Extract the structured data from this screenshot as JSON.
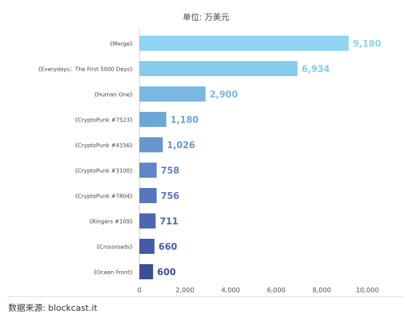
{
  "chart_data": {
    "type": "bar",
    "orientation": "horizontal",
    "subtitle": "单位: 万美元",
    "categories": [
      "《Merge》",
      "《Everydays：The First 5000 Days》",
      "《Human One》",
      "《CryptoPunk #7523》",
      "《CryptoPunk #4156》",
      "《CryptoPunk #3100》",
      "《CryptoPunk #7804》",
      "《Ringers #109》",
      "《Crossroads》",
      "《Ocean Front》"
    ],
    "values": [
      9180,
      6934,
      2900,
      1180,
      1026,
      758,
      756,
      711,
      660,
      600
    ],
    "data_labels": [
      "9,180",
      "6,934",
      "2,900",
      "1,180",
      "1,026",
      "758",
      "756",
      "711",
      "660",
      "600"
    ],
    "bar_colors": [
      "#8fd4f1",
      "#86cceb",
      "#7ab8e2",
      "#6fa6d8",
      "#6897cf",
      "#5f86c6",
      "#5677bb",
      "#4c66b0",
      "#4559a4",
      "#3e4d98"
    ],
    "x_ticks": [
      "0",
      "2,000",
      "4,000",
      "6,000",
      "8,000",
      "10,000"
    ],
    "xlim": [
      0,
      10000
    ],
    "grid": false
  },
  "source": "数据来源: blockcast.it"
}
